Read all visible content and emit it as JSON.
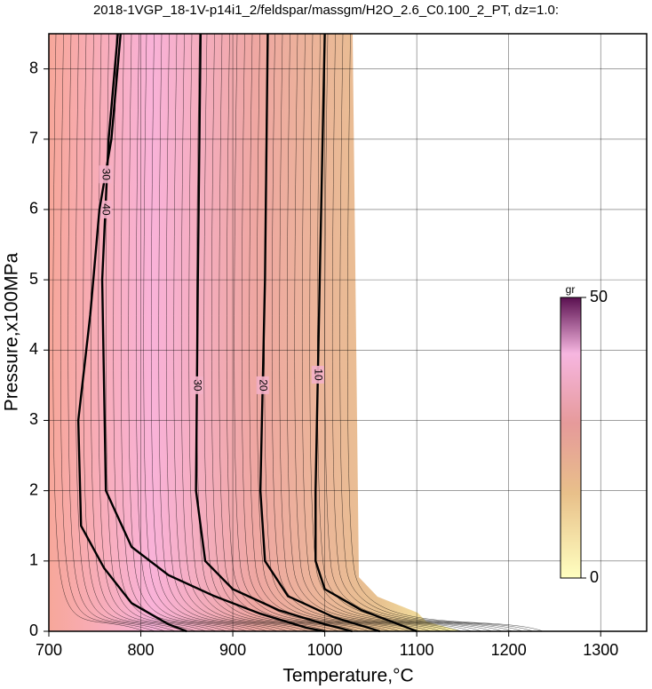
{
  "chart_data": {
    "type": "contour",
    "title": "2018-1VGP_18-1V-p14i1_2/feldspar/massgm/H2O_2.6_C0.100_2_PT, dz=1.0:",
    "x_label": "Temperature,°C",
    "y_label": "Pressure,x100MPa",
    "xlim": [
      700,
      1350
    ],
    "ylim": [
      0,
      8.5
    ],
    "xticks": [
      700,
      800,
      900,
      1000,
      1100,
      1200,
      1300
    ],
    "yticks": [
      0,
      1,
      2,
      3,
      4,
      5,
      6,
      7,
      8
    ],
    "grid": true,
    "contours": [
      {
        "level": 10,
        "x": [
          1000,
          995,
          990,
          990,
          1000,
          1040,
          1090,
          1100
        ],
        "y": [
          8.5,
          5.3,
          2,
          1,
          0.6,
          0.3,
          0.05,
          0
        ]
      },
      {
        "level": 20,
        "x": [
          938,
          935,
          930,
          935,
          960,
          1010,
          1060
        ],
        "y": [
          8.5,
          5,
          2,
          1,
          0.5,
          0.2,
          0
        ]
      },
      {
        "level": 30,
        "x": [
          865,
          862,
          860,
          870,
          900,
          950,
          1000,
          1030
        ],
        "y": [
          8.5,
          5,
          2,
          1,
          0.6,
          0.3,
          0.1,
          0
        ]
      },
      {
        "level": 40,
        "x": [
          775,
          765,
          758,
          760,
          762,
          790,
          830,
          880,
          930,
          980,
          1000
        ],
        "y": [
          8.5,
          7,
          5,
          3.5,
          2,
          1.2,
          0.8,
          0.5,
          0.25,
          0.05,
          0
        ]
      },
      {
        "level": 30,
        "x": [
          778,
          768,
          755,
          745,
          732,
          735,
          760,
          790,
          830,
          850
        ],
        "y": [
          8.5,
          7,
          6,
          4.5,
          3,
          1.5,
          0.9,
          0.4,
          0.1,
          0
        ]
      }
    ],
    "colorbar": {
      "label": "gr",
      "ticks": [
        0,
        50
      ]
    }
  }
}
